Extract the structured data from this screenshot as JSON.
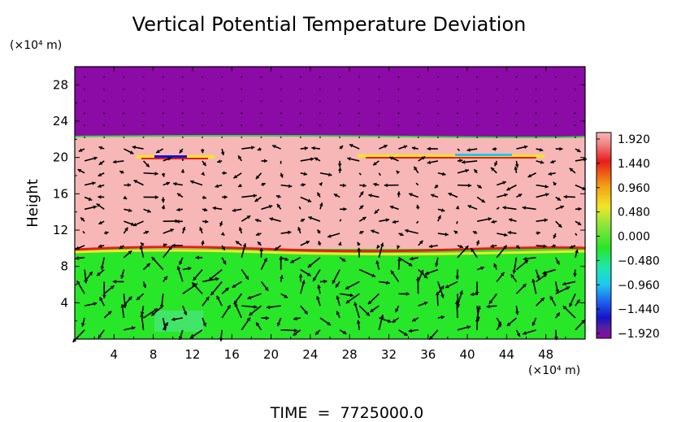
{
  "chart_data": {
    "type": "heatmap",
    "title": "Vertical Potential Temperature Deviation",
    "ylabel": "Height",
    "y_unit": "(×10⁴ m)",
    "x_unit": "(×10⁴ m)",
    "xlim": [
      0,
      52
    ],
    "ylim": [
      0,
      30
    ],
    "x_ticks": [
      "4",
      "8",
      "12",
      "16",
      "20",
      "24",
      "28",
      "32",
      "36",
      "40",
      "44",
      "48"
    ],
    "y_ticks": [
      "4",
      "8",
      "12",
      "16",
      "20",
      "24",
      "28"
    ],
    "colorbar": {
      "labels": [
        "1.920",
        "1.440",
        "0.960",
        "0.480",
        "0.000",
        "−0.480",
        "−0.960",
        "−1.440",
        "−1.920"
      ],
      "min": -1.92,
      "max": 1.92
    },
    "bands": [
      {
        "from": 0,
        "to": 9.7,
        "value": 0.06
      },
      {
        "from": 9.7,
        "to": 22.2,
        "value": 1.92
      },
      {
        "from": 22.2,
        "to": 30,
        "value": -1.92
      }
    ],
    "footer": "TIME  =  7725000.0",
    "vector_field": true
  },
  "colors": {
    "purple": "#8c0aa5",
    "pink": "#f8b7b7",
    "green": "#28e628",
    "vector": "#000000"
  }
}
